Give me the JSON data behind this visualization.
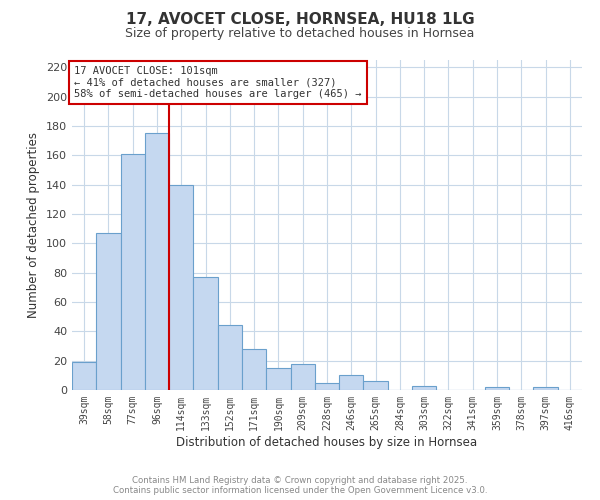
{
  "title": "17, AVOCET CLOSE, HORNSEA, HU18 1LG",
  "subtitle": "Size of property relative to detached houses in Hornsea",
  "xlabel": "Distribution of detached houses by size in Hornsea",
  "ylabel": "Number of detached properties",
  "bar_color": "#c5d8f0",
  "bar_edge_color": "#6aa0cc",
  "background_color": "#ffffff",
  "grid_color": "#c8d8e8",
  "categories": [
    "39sqm",
    "58sqm",
    "77sqm",
    "96sqm",
    "114sqm",
    "133sqm",
    "152sqm",
    "171sqm",
    "190sqm",
    "209sqm",
    "228sqm",
    "246sqm",
    "265sqm",
    "284sqm",
    "303sqm",
    "322sqm",
    "341sqm",
    "359sqm",
    "378sqm",
    "397sqm",
    "416sqm"
  ],
  "values": [
    19,
    107,
    161,
    175,
    140,
    77,
    44,
    28,
    15,
    18,
    5,
    10,
    6,
    0,
    3,
    0,
    0,
    2,
    0,
    2,
    0
  ],
  "ylim": [
    0,
    225
  ],
  "yticks": [
    0,
    20,
    40,
    60,
    80,
    100,
    120,
    140,
    160,
    180,
    200,
    220
  ],
  "vline_x": 3.5,
  "vline_color": "#cc0000",
  "annotation_title": "17 AVOCET CLOSE: 101sqm",
  "annotation_line1": "← 41% of detached houses are smaller (327)",
  "annotation_line2": "58% of semi-detached houses are larger (465) →",
  "annotation_box_color": "#ffffff",
  "annotation_box_edge": "#cc0000",
  "footer_line1": "Contains HM Land Registry data © Crown copyright and database right 2025.",
  "footer_line2": "Contains public sector information licensed under the Open Government Licence v3.0."
}
